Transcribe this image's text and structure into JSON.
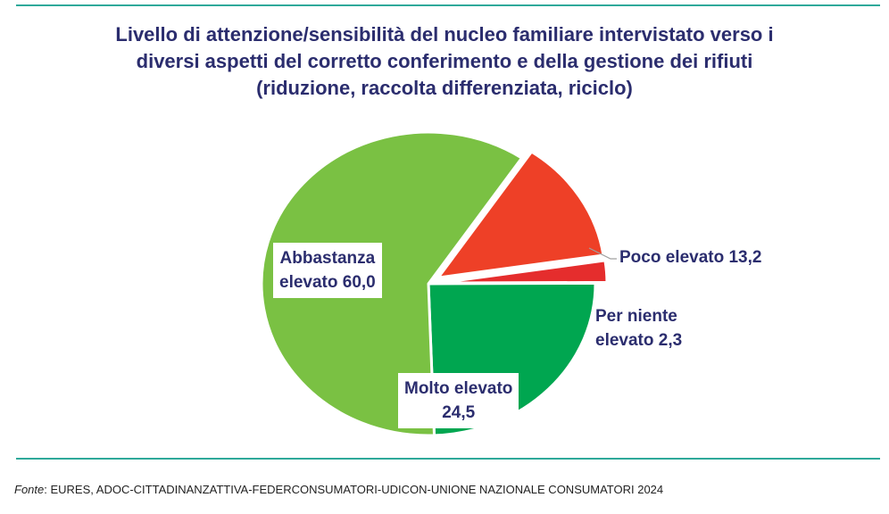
{
  "chart_data": {
    "type": "pie",
    "title": [
      "Livello di attenzione/sensibilità del nucleo familiare intervistato verso i",
      "diversi aspetti del corretto conferimento e della gestione dei rifiuti",
      "(riduzione, raccolta differenziata, riciclo)"
    ],
    "slices": [
      {
        "label": [
          "Poco elevato 13,2"
        ],
        "value": 13.2,
        "color": "#ee4027",
        "exploded": true
      },
      {
        "label": [
          "Per niente",
          "elevato 2,3"
        ],
        "value": 2.3,
        "color": "#e52d2d",
        "exploded": true
      },
      {
        "label": [
          "Molto elevato",
          "24,5"
        ],
        "value": 24.5,
        "color": "#00a650",
        "exploded": false
      },
      {
        "label": [
          "Abbastanza",
          "elevato 60,0"
        ],
        "value": 60.0,
        "color": "#7ac143",
        "exploded": false
      }
    ]
  },
  "source": {
    "prefix": "Fonte",
    "text": ": EURES, ADOC-CITTADINANZATTIVA-FEDERCONSUMATORI-UDICON-UNIONE NAZIONALE CONSUMATORI 2024"
  }
}
